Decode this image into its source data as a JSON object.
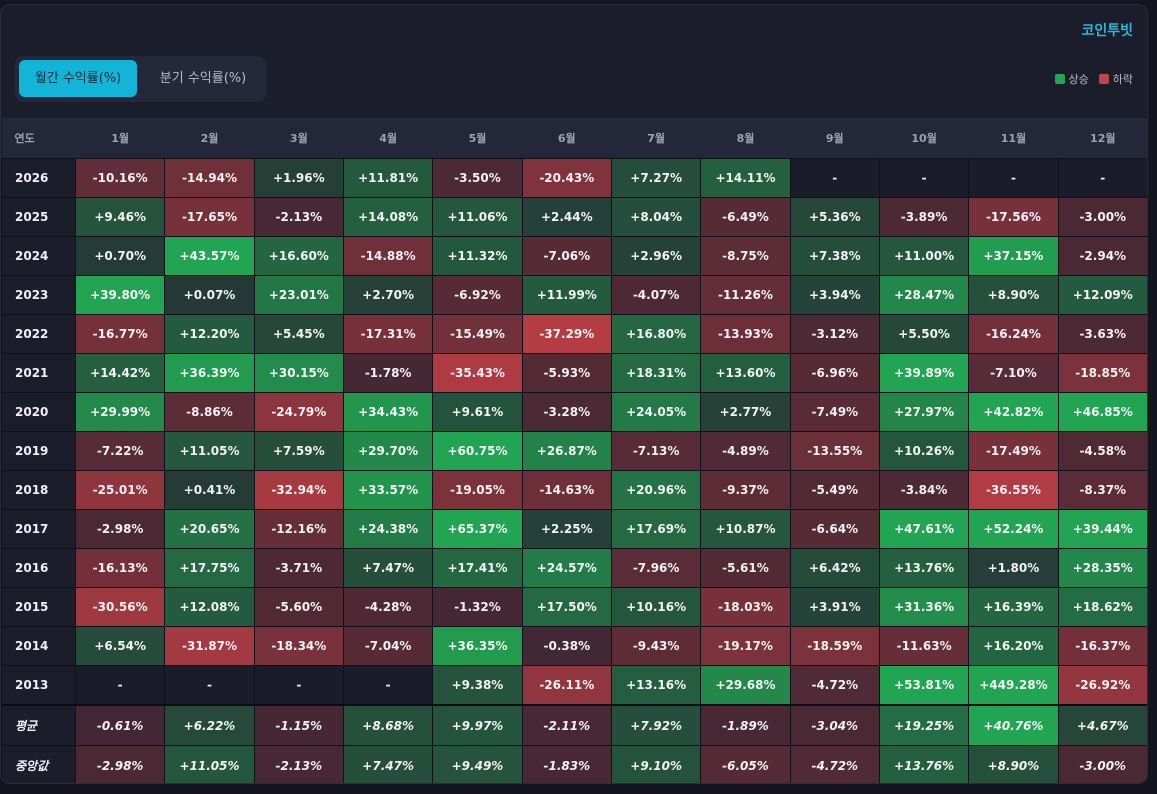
{
  "brand": "코인투빗",
  "tabs": {
    "monthly": "월간 수익률(%)",
    "quarterly": "분기 수익률(%)"
  },
  "legend": {
    "up_label": "상승",
    "down_label": "하락",
    "up_color": "#26a25a",
    "down_color": "#c0454b"
  },
  "table": {
    "year_header": "연도",
    "months": [
      "1월",
      "2월",
      "3월",
      "4월",
      "5월",
      "6월",
      "7월",
      "8월",
      "9월",
      "10월",
      "11월",
      "12월"
    ],
    "rows": [
      {
        "year": "2026",
        "values": [
          "-10.16%",
          "-14.94%",
          "+1.96%",
          "+11.81%",
          "-3.50%",
          "-20.43%",
          "+7.27%",
          "+14.11%",
          "-",
          "-",
          "-",
          "-"
        ]
      },
      {
        "year": "2025",
        "values": [
          "+9.46%",
          "-17.65%",
          "-2.13%",
          "+14.08%",
          "+11.06%",
          "+2.44%",
          "+8.04%",
          "-6.49%",
          "+5.36%",
          "-3.89%",
          "-17.56%",
          "-3.00%"
        ]
      },
      {
        "year": "2024",
        "values": [
          "+0.70%",
          "+43.57%",
          "+16.60%",
          "-14.88%",
          "+11.32%",
          "-7.06%",
          "+2.96%",
          "-8.75%",
          "+7.38%",
          "+11.00%",
          "+37.15%",
          "-2.94%"
        ]
      },
      {
        "year": "2023",
        "values": [
          "+39.80%",
          "+0.07%",
          "+23.01%",
          "+2.70%",
          "-6.92%",
          "+11.99%",
          "-4.07%",
          "-11.26%",
          "+3.94%",
          "+28.47%",
          "+8.90%",
          "+12.09%"
        ]
      },
      {
        "year": "2022",
        "values": [
          "-16.77%",
          "+12.20%",
          "+5.45%",
          "-17.31%",
          "-15.49%",
          "-37.29%",
          "+16.80%",
          "-13.93%",
          "-3.12%",
          "+5.50%",
          "-16.24%",
          "-3.63%"
        ]
      },
      {
        "year": "2021",
        "values": [
          "+14.42%",
          "+36.39%",
          "+30.15%",
          "-1.78%",
          "-35.43%",
          "-5.93%",
          "+18.31%",
          "+13.60%",
          "-6.96%",
          "+39.89%",
          "-7.10%",
          "-18.85%"
        ]
      },
      {
        "year": "2020",
        "values": [
          "+29.99%",
          "-8.86%",
          "-24.79%",
          "+34.43%",
          "+9.61%",
          "-3.28%",
          "+24.05%",
          "+2.77%",
          "-7.49%",
          "+27.97%",
          "+42.82%",
          "+46.85%"
        ]
      },
      {
        "year": "2019",
        "values": [
          "-7.22%",
          "+11.05%",
          "+7.59%",
          "+29.70%",
          "+60.75%",
          "+26.87%",
          "-7.13%",
          "-4.89%",
          "-13.55%",
          "+10.26%",
          "-17.49%",
          "-4.58%"
        ]
      },
      {
        "year": "2018",
        "values": [
          "-25.01%",
          "+0.41%",
          "-32.94%",
          "+33.57%",
          "-19.05%",
          "-14.63%",
          "+20.96%",
          "-9.37%",
          "-5.49%",
          "-3.84%",
          "-36.55%",
          "-8.37%"
        ]
      },
      {
        "year": "2017",
        "values": [
          "-2.98%",
          "+20.65%",
          "-12.16%",
          "+24.38%",
          "+65.37%",
          "+2.25%",
          "+17.69%",
          "+10.87%",
          "-6.64%",
          "+47.61%",
          "+52.24%",
          "+39.44%"
        ]
      },
      {
        "year": "2016",
        "values": [
          "-16.13%",
          "+17.75%",
          "-3.71%",
          "+7.47%",
          "+17.41%",
          "+24.57%",
          "-7.96%",
          "-5.61%",
          "+6.42%",
          "+13.76%",
          "+1.80%",
          "+28.35%"
        ]
      },
      {
        "year": "2015",
        "values": [
          "-30.56%",
          "+12.08%",
          "-5.60%",
          "-4.28%",
          "-1.32%",
          "+17.50%",
          "+10.16%",
          "-18.03%",
          "+3.91%",
          "+31.36%",
          "+16.39%",
          "+18.62%"
        ]
      },
      {
        "year": "2014",
        "values": [
          "+6.54%",
          "-31.87%",
          "-18.34%",
          "-7.04%",
          "+36.35%",
          "-0.38%",
          "-9.43%",
          "-19.17%",
          "-18.59%",
          "-11.63%",
          "+16.20%",
          "-16.37%"
        ]
      },
      {
        "year": "2013",
        "values": [
          "-",
          "-",
          "-",
          "-",
          "+9.38%",
          "-26.11%",
          "+13.16%",
          "+29.68%",
          "-4.72%",
          "+53.81%",
          "+449.28%",
          "-26.92%"
        ]
      }
    ],
    "stats": [
      {
        "label": "평균",
        "values": [
          "-0.61%",
          "+6.22%",
          "-1.15%",
          "+8.68%",
          "+9.97%",
          "-2.11%",
          "+7.92%",
          "-1.89%",
          "-3.04%",
          "+19.25%",
          "+40.76%",
          "+4.67%"
        ]
      },
      {
        "label": "중앙값",
        "values": [
          "-2.98%",
          "+11.05%",
          "-2.13%",
          "+7.47%",
          "+9.49%",
          "-1.83%",
          "+9.10%",
          "-6.05%",
          "-4.72%",
          "+13.76%",
          "+8.90%",
          "-3.00%"
        ]
      }
    ]
  }
}
